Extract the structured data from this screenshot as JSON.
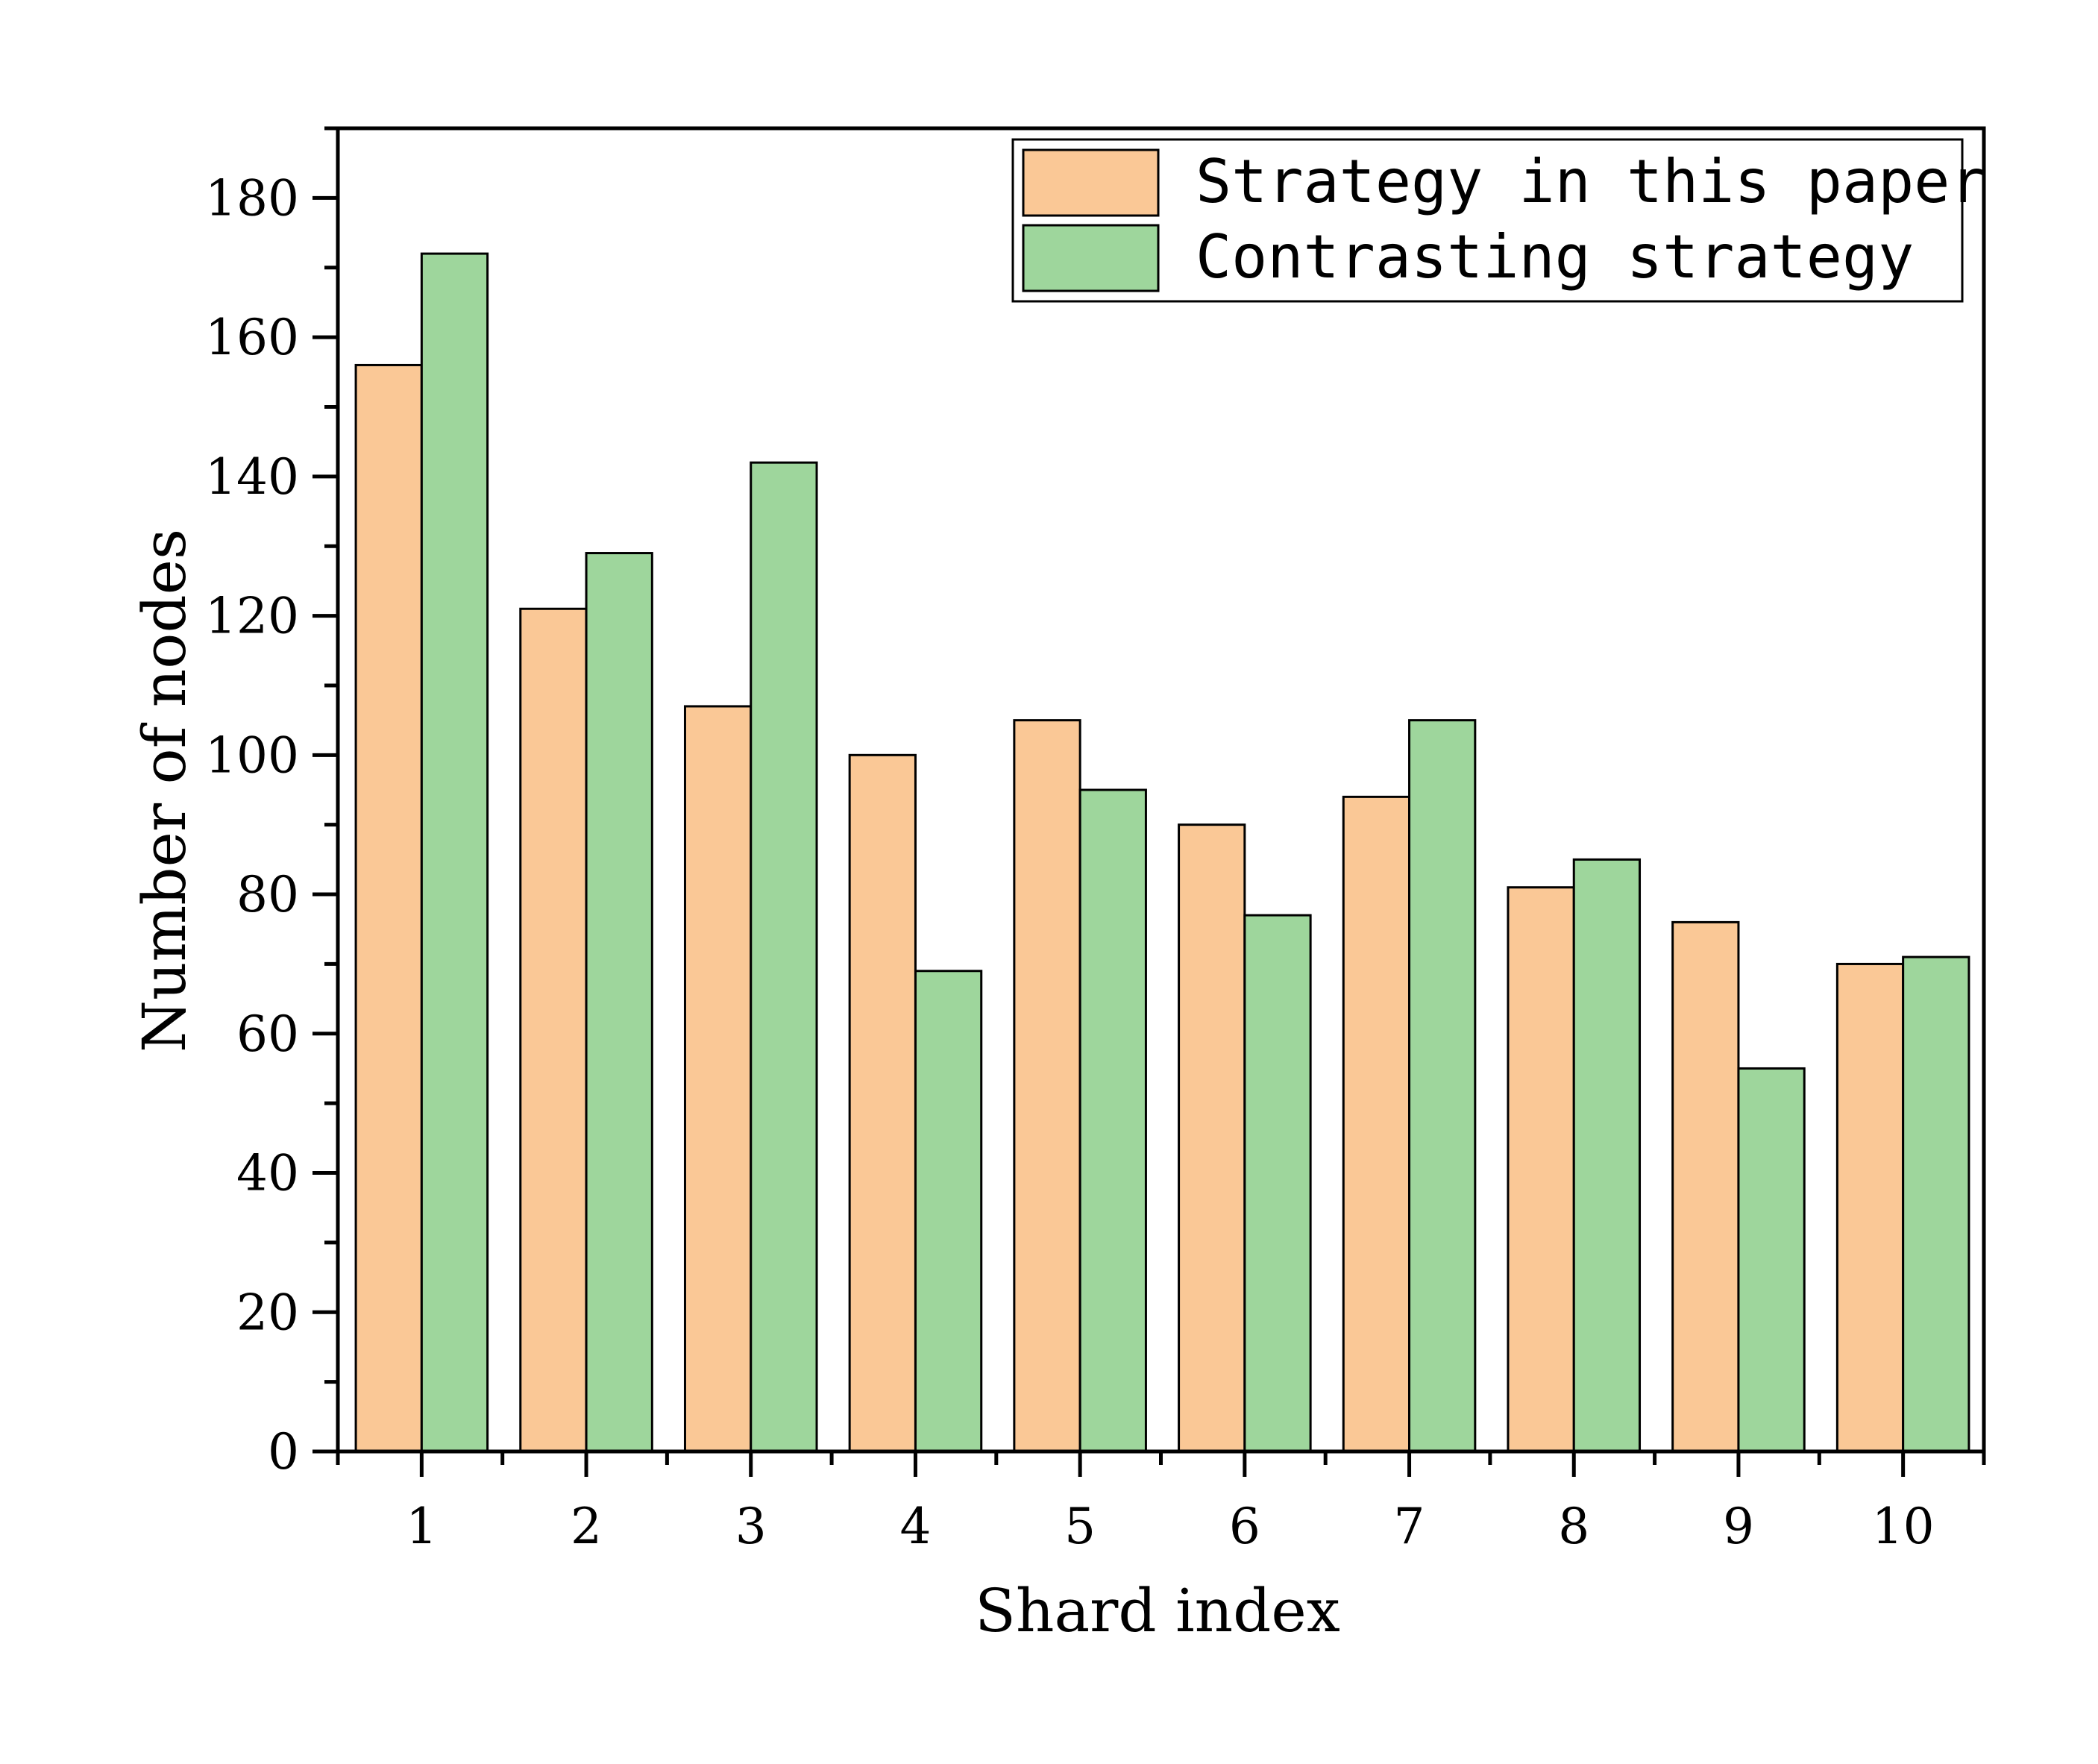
{
  "chart_data": {
    "type": "bar",
    "xlabel": "Shard index",
    "ylabel": "Number of nodes",
    "categories": [
      "1",
      "2",
      "3",
      "4",
      "5",
      "6",
      "7",
      "8",
      "9",
      "10"
    ],
    "series": [
      {
        "name": "Strategy in this paper",
        "color": "#FAC896",
        "values": [
          156,
          121,
          107,
          100,
          105,
          90,
          94,
          81,
          76,
          70
        ]
      },
      {
        "name": "Contrasting strategy",
        "color": "#9ED69C",
        "values": [
          172,
          129,
          142,
          69,
          95,
          77,
          105,
          85,
          55,
          71
        ]
      }
    ],
    "ylim": [
      0,
      190
    ],
    "yticks": [
      0,
      20,
      40,
      60,
      80,
      100,
      120,
      140,
      160,
      180
    ],
    "minor_tick_step": 10,
    "grid": false,
    "legend_position": "top-right"
  }
}
